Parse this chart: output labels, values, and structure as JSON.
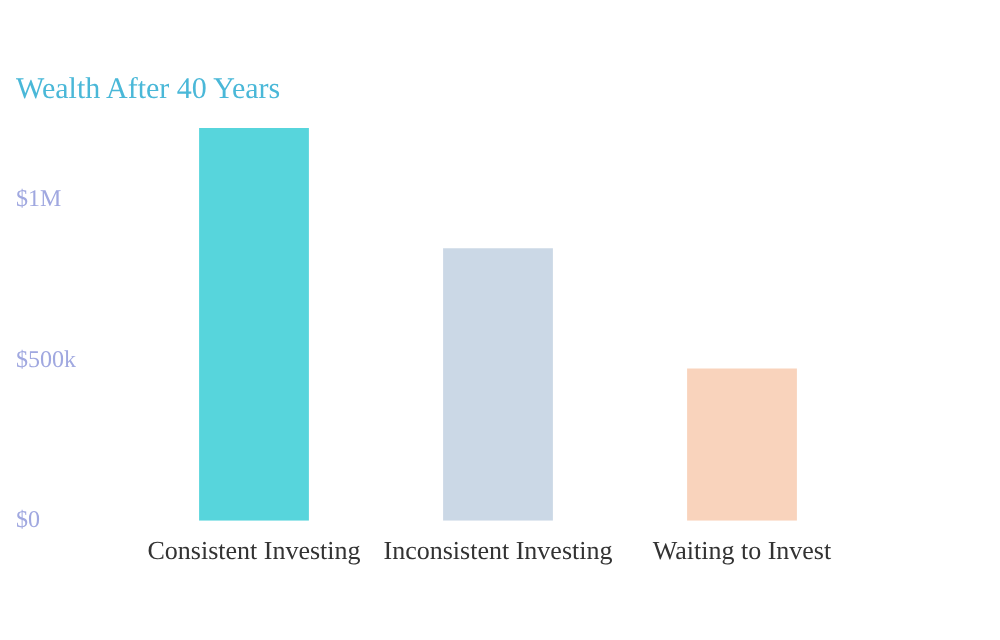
{
  "chart_data": {
    "type": "bar",
    "title": "Wealth After 40 Years",
    "categories": [
      "Consistent Investing",
      "Inconsistent Investing",
      "Waiting to Invest"
    ],
    "values": [
      1225000,
      850000,
      475000
    ],
    "colors": [
      "#57d5dc",
      "#cbd8e6",
      "#f9d3bc"
    ],
    "ylim": [
      0,
      1250000
    ],
    "yticks": [
      {
        "value": 0,
        "label": "$0"
      },
      {
        "value": 500000,
        "label": "$500k"
      },
      {
        "value": 1000000,
        "label": "$1M"
      }
    ],
    "grid": false,
    "legend": false
  }
}
